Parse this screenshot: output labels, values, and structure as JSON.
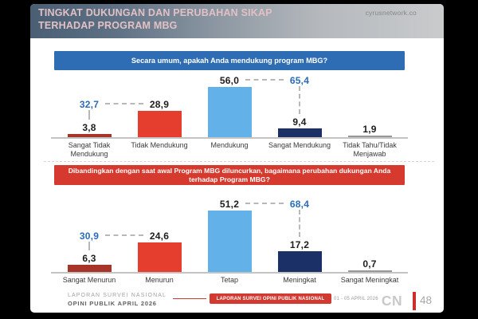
{
  "slide": {
    "title": "TINGKAT DUKUNGAN DAN PERUBAHAN SIKAP TERHADAP PROGRAM MBG",
    "title_line1": "TINGKAT DUKUNGAN DAN PERUBAHAN SIKAP",
    "title_line2": "TERHADAP PROGRAM MBG",
    "watermark": "cyrusnetwork.co"
  },
  "footer": {
    "left_line1": "LAPORAN SURVEI NASIONAL",
    "left_line2": "OPINI PUBLIK APRIL 2026",
    "banner": "LAPORAN SURVEI OPINI PUBLIK NASIONAL",
    "date_range": "01 - 05 APRIL 2026",
    "logo_text": "CN",
    "page_number": "48"
  },
  "colors": {
    "accent_blue": "#2e6cb4",
    "accent_red": "#d63a2e",
    "combined_label_blue": "#2a6cb8",
    "bar_dark_red": "#a63428",
    "bar_red": "#e63e2e",
    "bar_light_blue": "#62b1e8",
    "bar_navy": "#1a3067",
    "bar_gray": "#989898"
  },
  "chart_data": [
    {
      "type": "bar",
      "name": "support-chart",
      "title": "Secara umum, apakah Anda mendukung program MBG?",
      "title_lines": [
        "Secara umum, apakah Anda mendukung program MBG?"
      ],
      "header_color": "#2e6cb4",
      "categories": [
        "Sangat Tidak Mendukung",
        "Tidak Mendukung",
        "Mendukung",
        "Sangat Mendukung",
        "Tidak Tahu/Tidak Menjawab"
      ],
      "values": [
        3.8,
        28.9,
        56.0,
        9.4,
        1.9
      ],
      "labels": [
        "3,8",
        "28,9",
        "56,0",
        "9,4",
        "1,9"
      ],
      "bar_colors": [
        "#a63428",
        "#e63e2e",
        "#62b1e8",
        "#1a3067",
        "#989898"
      ],
      "combined": [
        {
          "label": "32,7",
          "value": 32.7,
          "over": 0,
          "align_to": 1
        },
        {
          "label": "65,4",
          "value": 65.4,
          "over": 3,
          "align_to": 2
        }
      ],
      "ylim": [
        0,
        60
      ]
    },
    {
      "type": "bar",
      "name": "change-chart",
      "title": "Dibandingkan dengan saat awal Program MBG diluncurkan, bagaimana perubahan dukungan Anda terhadap Program MBG?",
      "title_lines": [
        "Dibandingkan dengan saat awal Program MBG diluncurkan, bagaimana perubahan dukungan Anda",
        "terhadap Program MBG?"
      ],
      "header_color": "#d63a2e",
      "categories": [
        "Sangat Menurun",
        "Menurun",
        "Tetap",
        "Meningkat",
        "Sangat Meningkat"
      ],
      "values": [
        6.3,
        24.6,
        51.2,
        17.2,
        0.7
      ],
      "labels": [
        "6,3",
        "24,6",
        "51,2",
        "17,2",
        "0,7"
      ],
      "bar_colors": [
        "#a63428",
        "#e63e2e",
        "#62b1e8",
        "#1a3067",
        "#989898"
      ],
      "combined": [
        {
          "label": "30,9",
          "value": 30.9,
          "over": 0,
          "align_to": 1
        },
        {
          "label": "68,4",
          "value": 68.4,
          "over": 3,
          "align_to": 2
        }
      ],
      "ylim": [
        0,
        55
      ]
    }
  ]
}
